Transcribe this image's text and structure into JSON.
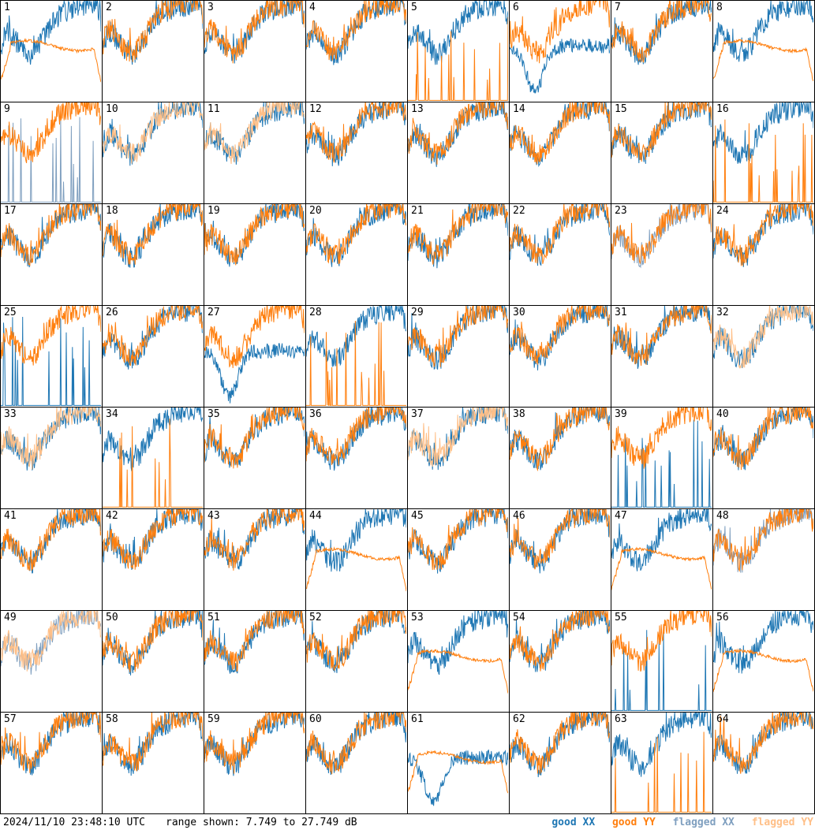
{
  "chart_data": {
    "type": "line",
    "panel_count": 64,
    "panels": [
      "1",
      "2",
      "3",
      "4",
      "5",
      "6",
      "7",
      "8",
      "9",
      "10",
      "11",
      "12",
      "13",
      "14",
      "15",
      "16",
      "17",
      "18",
      "19",
      "20",
      "21",
      "22",
      "23",
      "24",
      "25",
      "26",
      "27",
      "28",
      "29",
      "30",
      "31",
      "32",
      "33",
      "34",
      "35",
      "36",
      "37",
      "38",
      "39",
      "40",
      "41",
      "42",
      "43",
      "44",
      "45",
      "46",
      "47",
      "48",
      "49",
      "50",
      "51",
      "52",
      "53",
      "54",
      "55",
      "56",
      "57",
      "58",
      "59",
      "60",
      "61",
      "62",
      "63",
      "64"
    ],
    "ylim": [
      7.749,
      27.749
    ],
    "series": [
      {
        "name": "good XX",
        "color": "#1f77b4"
      },
      {
        "name": "good YY",
        "color": "#ff7f0e"
      },
      {
        "name": "flagged XX",
        "color": "#7f9fbf"
      },
      {
        "name": "flagged YY",
        "color": "#ffbf87"
      }
    ],
    "flagged_xx": [
      9,
      23,
      48,
      49
    ],
    "flagged_yy": [
      10,
      11,
      32,
      33,
      37,
      49
    ],
    "spiky_yy": [
      5,
      16,
      28,
      34,
      63
    ],
    "spiky_xx": [
      9,
      25,
      39,
      55
    ],
    "smooth_yy": [
      1,
      8,
      44,
      47,
      53,
      56,
      61
    ],
    "smooth_xx": [
      27
    ],
    "drop_xx": [
      6,
      27,
      61
    ]
  },
  "footer": {
    "timestamp": "2024/11/10 23:48:10 UTC",
    "range": "range shown: 7.749 to 27.749 dB",
    "legend": {
      "good_xx": "good XX",
      "good_yy": "good YY",
      "flagged_xx": "flagged XX",
      "flagged_yy": "flagged YY"
    }
  }
}
